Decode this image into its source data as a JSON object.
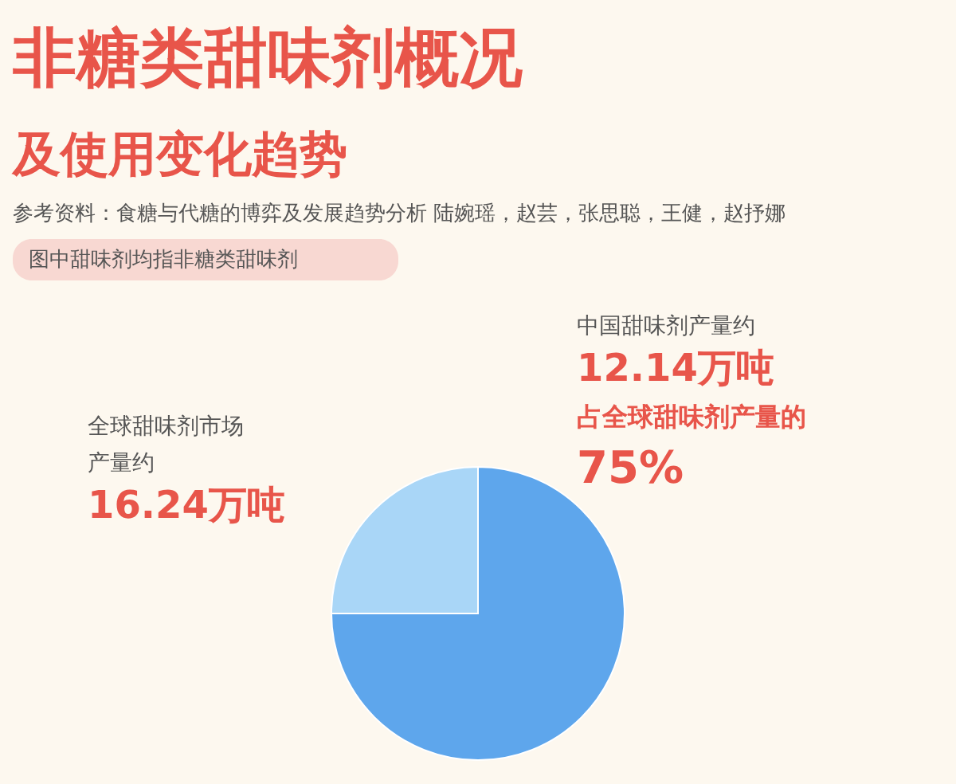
{
  "chart_data": {
    "type": "pie",
    "title": "非糖类甜味剂概况",
    "subtitle": "及使用变化趋势",
    "categories": [
      null,
      null
    ],
    "values": [
      75,
      25
    ],
    "colors": [
      "#5ea6ec",
      "#a9d6f7"
    ],
    "annotations": [
      "参考资料：食糖与代糖的博弈及发展趋势分析 陆婉瑶，赵芸，张思聪，王健，赵抒娜",
      "图中甜味剂均指非糖类甜味剂",
      "中国甜味剂产量约",
      "12.14万吨",
      "占全球甜味剂产量的",
      "75%",
      "全球甜味剂市场",
      "产量约",
      "16.24万吨"
    ]
  }
}
